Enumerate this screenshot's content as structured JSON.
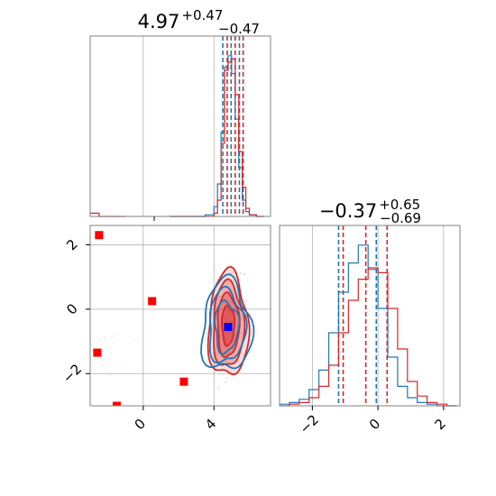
{
  "colors": {
    "series_a": "#1f77b4",
    "series_b": "#d62728",
    "marker_primary": "#ff0000",
    "marker_truth": "#0000ff",
    "grid": "#b0b0b0",
    "frame": "#808080"
  },
  "chart_data": [
    {
      "type": "histogram",
      "panel": "top-left marginal",
      "title_main": "4.97",
      "title_sup": "+0.47",
      "title_sub": "−0.47",
      "xlim": [
        -3,
        7.2
      ],
      "grid": true,
      "x": [
        1.5,
        2,
        2.5,
        3,
        3.5,
        4,
        4.2,
        4.4,
        4.6,
        4.8,
        5.0,
        5.2,
        5.4,
        5.6,
        5.8,
        6.0,
        6.4
      ],
      "series": [
        {
          "color_key": "series_a",
          "values": [
            0,
            0,
            0,
            0,
            1,
            6,
            20,
            52,
            92,
            99,
            88,
            60,
            30,
            10,
            3,
            1,
            0
          ],
          "quantile_lines": [
            4.5,
            4.97,
            5.44
          ]
        },
        {
          "color_key": "series_b",
          "values": [
            0,
            0,
            0,
            0,
            0,
            2,
            10,
            45,
            90,
            95,
            97,
            75,
            40,
            18,
            5,
            1,
            0
          ],
          "quantile_lines": [
            4.75,
            5.2,
            5.65
          ]
        }
      ],
      "low_tail": {
        "color_key": "series_b",
        "x": [
          -3,
          -2.5
        ],
        "value": 2
      }
    },
    {
      "type": "scatter",
      "panel": "bottom-left joint",
      "xlim": [
        -3,
        7.2
      ],
      "ylim": [
        -3,
        2.6
      ],
      "xticks": [
        0,
        4
      ],
      "xtick_labels": [
        "0",
        "4"
      ],
      "yticks": [
        -2,
        0,
        2
      ],
      "ytick_labels": [
        "−2",
        "0",
        "2"
      ],
      "grid": true,
      "red_markers": [
        [
          -2.5,
          2.3
        ],
        [
          0.5,
          0.25
        ],
        [
          -2.6,
          -1.35
        ],
        [
          2.3,
          -2.25
        ],
        [
          -1.5,
          -3
        ]
      ],
      "truth_marker": [
        4.8,
        -0.55
      ],
      "contours": {
        "series_b_center": [
          4.8,
          -0.5
        ],
        "series_a_center": [
          4.7,
          -0.55
        ]
      }
    },
    {
      "type": "histogram",
      "panel": "bottom-right marginal",
      "title_main": "−0.37",
      "title_sup": "+0.65",
      "title_sub": "−0.69",
      "xlim": [
        -3,
        2.5
      ],
      "xticks": [
        -2,
        0,
        2
      ],
      "xtick_labels": [
        "−2",
        "0",
        "2"
      ],
      "grid": true,
      "x": [
        -3.0,
        -2.7,
        -2.4,
        -2.1,
        -1.8,
        -1.5,
        -1.2,
        -0.9,
        -0.6,
        -0.3,
        0.0,
        0.3,
        0.6,
        0.9,
        1.2,
        1.5,
        1.8,
        2.1
      ],
      "series": [
        {
          "color_key": "series_a",
          "values": [
            1,
            2,
            4,
            10,
            22,
            45,
            70,
            88,
            99,
            84,
            60,
            30,
            12,
            5,
            2,
            1,
            0,
            0
          ],
          "quantile_lines": [
            -1.2,
            -0.05
          ]
        },
        {
          "color_key": "series_b",
          "values": [
            0,
            1,
            2,
            5,
            12,
            25,
            45,
            65,
            78,
            85,
            82,
            60,
            35,
            15,
            6,
            2,
            1,
            0
          ],
          "quantile_lines": [
            -1.06,
            -0.37,
            0.28
          ]
        }
      ]
    }
  ]
}
